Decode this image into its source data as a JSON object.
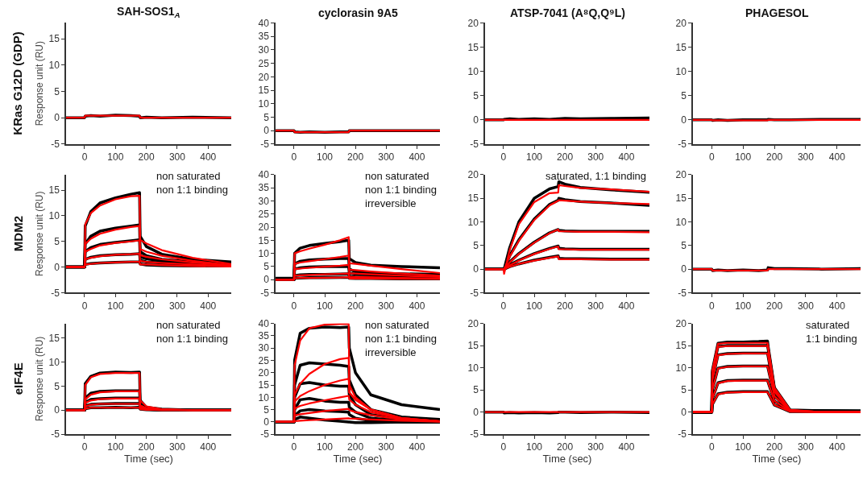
{
  "chart_data": [
    {
      "type": "line",
      "title": "SAH-SOS1$_{A}$",
      "ylabel": "Response unit (RU)",
      "annotations": [
        "KRas G12D (GDP)"
      ],
      "x": [
        -60,
        0,
        2,
        20,
        50,
        100,
        150,
        178,
        180,
        200,
        250,
        350,
        475
      ],
      "xlim": [
        -60,
        475
      ],
      "xticks": [
        0,
        100,
        200,
        300,
        400
      ],
      "ylim": [
        -5,
        18
      ],
      "yticks": [
        -5,
        0,
        5,
        10,
        15
      ],
      "series": [
        {
          "color": "#000000",
          "values": [
            0,
            0,
            0.3,
            0.4,
            0.3,
            0.5,
            0.4,
            0.3,
            0,
            0.1,
            0,
            0.1,
            0
          ]
        },
        {
          "color": "#ff0000",
          "values": [
            0,
            0,
            0.4,
            0.4,
            0.4,
            0.4,
            0.4,
            0.4,
            0,
            0,
            0,
            0,
            0
          ]
        }
      ]
    },
    {
      "type": "line",
      "title": "cyclorasin 9A5",
      "x": [
        -60,
        0,
        2,
        20,
        50,
        100,
        150,
        178,
        180,
        200,
        250,
        350,
        475
      ],
      "xlim": [
        -60,
        475
      ],
      "xticks": [
        0,
        100,
        200,
        300,
        400
      ],
      "ylim": [
        -5,
        40
      ],
      "yticks": [
        -5,
        0,
        5,
        10,
        15,
        20,
        25,
        30,
        35,
        40
      ],
      "series": [
        {
          "color": "#000000",
          "values": [
            0,
            0,
            -0.5,
            -0.6,
            -0.5,
            -0.6,
            -0.5,
            -0.5,
            0,
            0,
            0,
            0,
            0
          ]
        },
        {
          "color": "#ff0000",
          "values": [
            0,
            0,
            -0.6,
            -0.6,
            -0.6,
            -0.6,
            -0.6,
            -0.6,
            0,
            0,
            0,
            0,
            0
          ]
        }
      ]
    },
    {
      "type": "line",
      "title": "ATSP-7041 (A⁸Q,Q⁹L)",
      "x": [
        -60,
        0,
        2,
        20,
        50,
        100,
        150,
        178,
        180,
        200,
        250,
        350,
        475
      ],
      "xlim": [
        -60,
        475
      ],
      "xticks": [
        0,
        100,
        200,
        300,
        400
      ],
      "ylim": [
        -5,
        20
      ],
      "yticks": [
        -5,
        0,
        5,
        10,
        15,
        20
      ],
      "series": [
        {
          "color": "#000000",
          "values": [
            0,
            0,
            0.1,
            0.2,
            0.1,
            0.2,
            0.1,
            0.2,
            0.2,
            0.3,
            0.2,
            0.3,
            0.4
          ]
        },
        {
          "color": "#ff0000",
          "values": [
            0,
            0,
            0,
            0,
            0,
            0,
            0,
            0,
            0,
            0,
            0,
            0,
            0
          ]
        }
      ]
    },
    {
      "type": "line",
      "title": "PHAGESOL",
      "x": [
        -60,
        0,
        2,
        20,
        50,
        100,
        150,
        178,
        180,
        200,
        250,
        350,
        475
      ],
      "xlim": [
        -60,
        475
      ],
      "xticks": [
        0,
        100,
        200,
        300,
        400
      ],
      "ylim": [
        -5,
        20
      ],
      "yticks": [
        -5,
        0,
        5,
        10,
        15,
        20
      ],
      "series": [
        {
          "color": "#000000",
          "values": [
            0,
            0,
            -0.1,
            0,
            -0.1,
            0,
            0,
            0,
            0.1,
            0,
            0,
            0.1,
            0.1
          ]
        },
        {
          "color": "#ff0000",
          "values": [
            0,
            0,
            -0.1,
            -0.1,
            -0.1,
            -0.1,
            -0.1,
            -0.1,
            0,
            0,
            0,
            0,
            0
          ]
        }
      ]
    },
    {
      "type": "line",
      "ylabel": "Response unit (RU)",
      "annotations": [
        "MDM2",
        "non saturated\nnon 1:1 binding"
      ],
      "x": [
        -60,
        0,
        2,
        20,
        50,
        100,
        150,
        178,
        180,
        200,
        250,
        350,
        475
      ],
      "xlim": [
        -60,
        475
      ],
      "xticks": [
        0,
        100,
        200,
        300,
        400
      ],
      "ylim": [
        -5,
        18
      ],
      "yticks": [
        -5,
        0,
        5,
        10,
        15
      ],
      "series": [
        {
          "color": "#000000",
          "values": [
            0,
            0,
            8,
            10.8,
            12.5,
            13.5,
            14.2,
            14.5,
            6,
            4,
            2.5,
            1.5,
            1
          ]
        },
        {
          "color": "#000000",
          "values": [
            0,
            0,
            4.5,
            6,
            7,
            7.6,
            8,
            8.2,
            3,
            2.2,
            1.5,
            1,
            0.8
          ]
        },
        {
          "color": "#000000",
          "values": [
            0,
            0,
            3,
            3.8,
            4.4,
            4.8,
            5.1,
            5.3,
            2,
            1.6,
            1.2,
            0.9,
            0.7
          ]
        },
        {
          "color": "#000000",
          "values": [
            0,
            0,
            1.5,
            1.9,
            2.2,
            2.4,
            2.5,
            2.6,
            1.3,
            1,
            0.8,
            0.6,
            0.4
          ]
        },
        {
          "color": "#000000",
          "values": [
            0,
            0,
            0.5,
            0.7,
            0.8,
            0.9,
            1,
            1,
            0.6,
            0.4,
            0.3,
            0.2,
            0.2
          ]
        },
        {
          "color": "#ff0000",
          "values": [
            0,
            0,
            8.3,
            10.5,
            12,
            13.2,
            13.8,
            13.9,
            5.3,
            4.6,
            3.3,
            1.8,
            0.6
          ]
        },
        {
          "color": "#ff0000",
          "values": [
            0,
            0,
            4.5,
            5.5,
            6.5,
            7.3,
            7.8,
            8,
            3.5,
            3,
            2.2,
            1.2,
            0.4
          ]
        },
        {
          "color": "#ff0000",
          "values": [
            0,
            0,
            3,
            3.5,
            4.2,
            4.7,
            5,
            5.2,
            2.3,
            2,
            1.5,
            0.9,
            0.3
          ]
        },
        {
          "color": "#ff0000",
          "values": [
            0,
            0,
            1.5,
            1.8,
            2.1,
            2.4,
            2.5,
            2.6,
            1.2,
            1,
            0.8,
            0.5,
            0.2
          ]
        },
        {
          "color": "#ff0000",
          "values": [
            0,
            0,
            0.5,
            0.6,
            0.8,
            0.9,
            1,
            1,
            0.5,
            0.5,
            0.4,
            0.2,
            0.1
          ]
        }
      ]
    },
    {
      "type": "line",
      "annotations": [
        "non saturated\nnon 1:1 binding\nirreversible"
      ],
      "x": [
        -60,
        0,
        2,
        20,
        50,
        100,
        150,
        178,
        180,
        200,
        250,
        350,
        475
      ],
      "xlim": [
        -60,
        475
      ],
      "xticks": [
        0,
        100,
        200,
        300,
        400
      ],
      "ylim": [
        -5,
        40
      ],
      "yticks": [
        -5,
        0,
        5,
        10,
        15,
        20,
        25,
        30,
        35,
        40
      ],
      "series": [
        {
          "color": "#000000",
          "values": [
            0.5,
            0.5,
            10,
            12,
            13,
            13.8,
            14.5,
            15,
            8,
            6.5,
            5.5,
            5,
            4.5
          ]
        },
        {
          "color": "#000000",
          "values": [
            0,
            0,
            6,
            7,
            7.5,
            7.8,
            8,
            8,
            4,
            3,
            2.5,
            2.2,
            2
          ]
        },
        {
          "color": "#000000",
          "values": [
            0,
            0,
            4,
            4.5,
            4.8,
            5,
            5,
            5,
            2.5,
            2,
            1.8,
            1.5,
            1.3
          ]
        },
        {
          "color": "#000000",
          "values": [
            0,
            0,
            1.5,
            1.8,
            2,
            2,
            2.1,
            2.2,
            1.2,
            1,
            0.9,
            0.7,
            0.6
          ]
        },
        {
          "color": "#000000",
          "values": [
            0,
            0,
            0.5,
            0.6,
            0.7,
            0.7,
            0.8,
            0.8,
            0.5,
            0.4,
            0.4,
            0.3,
            0.3
          ]
        },
        {
          "color": "#ff0000",
          "values": [
            0,
            0,
            10,
            10.8,
            11.8,
            13.3,
            15,
            16.2,
            6.2,
            6,
            5.3,
            4,
            2.5
          ]
        },
        {
          "color": "#ff0000",
          "values": [
            0,
            0,
            6,
            6.5,
            7,
            7.8,
            8.6,
            9.2,
            3.8,
            3.6,
            3.1,
            2.3,
            1.5
          ]
        },
        {
          "color": "#ff0000",
          "values": [
            0,
            0,
            4,
            4.2,
            4.5,
            4.9,
            5.3,
            5.6,
            2.4,
            2.3,
            2,
            1.5,
            1
          ]
        },
        {
          "color": "#ff0000",
          "values": [
            0,
            0,
            1.5,
            1.6,
            1.8,
            2,
            2.2,
            2.3,
            1,
            1,
            0.9,
            0.6,
            0.4
          ]
        },
        {
          "color": "#ff0000",
          "values": [
            0,
            0,
            0.5,
            0.6,
            0.6,
            0.7,
            0.8,
            0.9,
            0.4,
            0.4,
            0.4,
            0.3,
            0.2
          ]
        }
      ]
    },
    {
      "type": "line",
      "annotations": [
        "saturated, 1:1 binding"
      ],
      "x": [
        -60,
        0,
        2,
        20,
        50,
        100,
        150,
        178,
        180,
        200,
        250,
        350,
        475
      ],
      "xlim": [
        -60,
        475
      ],
      "xticks": [
        0,
        100,
        200,
        300,
        400
      ],
      "ylim": [
        -5,
        20
      ],
      "yticks": [
        -5,
        0,
        5,
        10,
        15,
        20
      ],
      "series": [
        {
          "color": "#000000",
          "values": [
            0,
            0,
            0,
            4.5,
            10,
            15,
            17,
            17.5,
            18.5,
            18,
            17.3,
            16.8,
            16.3
          ]
        },
        {
          "color": "#000000",
          "values": [
            0,
            0,
            0,
            2.8,
            6.2,
            10.6,
            13.7,
            14.6,
            15,
            14.7,
            14.3,
            14,
            13.5
          ]
        },
        {
          "color": "#000000",
          "values": [
            0,
            0,
            0,
            1.5,
            3.3,
            5.7,
            7.7,
            8.4,
            8.2,
            8.1,
            8,
            8,
            8
          ]
        },
        {
          "color": "#000000",
          "values": [
            0,
            0,
            0,
            0.9,
            1.9,
            3.3,
            4.4,
            4.9,
            4.4,
            4.3,
            4.2,
            4.2,
            4.2
          ]
        },
        {
          "color": "#000000",
          "values": [
            0,
            0,
            0,
            0.5,
            1.1,
            1.9,
            2.5,
            2.8,
            2.3,
            2.2,
            2.2,
            2.1,
            2.1
          ]
        },
        {
          "color": "#ff0000",
          "values": [
            0,
            0,
            -1,
            4,
            9.5,
            14.2,
            16.1,
            16.2,
            17.8,
            17.6,
            17.2,
            16.9,
            16.4
          ]
        },
        {
          "color": "#ff0000",
          "values": [
            0,
            0,
            0,
            2.6,
            6,
            10.4,
            13.5,
            14.5,
            14.6,
            14.5,
            14.3,
            14,
            13.8
          ]
        },
        {
          "color": "#ff0000",
          "values": [
            0,
            0,
            0,
            1.4,
            3.2,
            5.6,
            7.6,
            8.4,
            8,
            8,
            7.9,
            7.9,
            7.8
          ]
        },
        {
          "color": "#ff0000",
          "values": [
            0,
            0,
            0,
            0.8,
            1.8,
            3.2,
            4.3,
            4.8,
            4.2,
            4.2,
            4.1,
            4.1,
            4.1
          ]
        },
        {
          "color": "#ff0000",
          "values": [
            0,
            0,
            0,
            0.5,
            1.1,
            1.8,
            2.4,
            2.7,
            2.1,
            2.1,
            2.1,
            2,
            2
          ]
        }
      ]
    },
    {
      "type": "line",
      "x": [
        -60,
        0,
        2,
        20,
        50,
        100,
        150,
        178,
        180,
        200,
        250,
        350,
        475
      ],
      "xlim": [
        -60,
        475
      ],
      "xticks": [
        0,
        100,
        200,
        300,
        400
      ],
      "ylim": [
        -5,
        20
      ],
      "yticks": [
        -5,
        0,
        5,
        10,
        15,
        20
      ],
      "series": [
        {
          "color": "#000000",
          "values": [
            0,
            0,
            -0.3,
            -0.2,
            -0.3,
            -0.2,
            -0.3,
            -0.2,
            0.3,
            0.1,
            0.1,
            0,
            0.1
          ]
        },
        {
          "color": "#ff0000",
          "values": [
            0,
            0,
            -0.3,
            -0.3,
            -0.3,
            -0.3,
            -0.3,
            -0.3,
            0,
            0,
            0,
            0,
            0
          ]
        }
      ]
    },
    {
      "type": "line",
      "xlabel": "Time (sec)",
      "ylabel": "Response unit (RU)",
      "annotations": [
        "eIF4E",
        "non saturated\nnon 1:1 binding"
      ],
      "x": [
        -60,
        0,
        2,
        20,
        50,
        100,
        150,
        178,
        180,
        200,
        250,
        350,
        475
      ],
      "xlim": [
        -60,
        475
      ],
      "xticks": [
        0,
        100,
        200,
        300,
        400
      ],
      "ylim": [
        -5,
        18
      ],
      "yticks": [
        -5,
        0,
        5,
        10,
        15
      ],
      "series": [
        {
          "color": "#000000",
          "values": [
            0,
            0,
            5.5,
            7,
            7.7,
            7.9,
            7.8,
            7.9,
            2,
            0.6,
            0.2,
            0,
            0
          ]
        },
        {
          "color": "#000000",
          "values": [
            0,
            0,
            2.5,
            3.5,
            3.9,
            4,
            4,
            4,
            1.1,
            0.4,
            0.1,
            0,
            0
          ]
        },
        {
          "color": "#000000",
          "values": [
            0,
            0,
            1.6,
            2.2,
            2.4,
            2.5,
            2.5,
            2.5,
            0.7,
            0.3,
            0.1,
            0,
            0
          ]
        },
        {
          "color": "#000000",
          "values": [
            0,
            0,
            0.9,
            1.2,
            1.3,
            1.4,
            1.4,
            1.4,
            0.4,
            0.2,
            0,
            0,
            0
          ]
        },
        {
          "color": "#000000",
          "values": [
            0,
            0,
            0.3,
            0.5,
            0.5,
            0.6,
            0.5,
            0.6,
            0.2,
            0.1,
            0,
            0,
            0
          ]
        },
        {
          "color": "#ff0000",
          "values": [
            0,
            0,
            5.2,
            6.8,
            7.5,
            7.7,
            7.7,
            7.7,
            2,
            0.8,
            0.2,
            0,
            0
          ]
        },
        {
          "color": "#ff0000",
          "values": [
            0,
            0,
            2.2,
            3.2,
            3.7,
            3.9,
            3.9,
            3.9,
            1,
            0.4,
            0.1,
            0,
            0
          ]
        },
        {
          "color": "#ff0000",
          "values": [
            0,
            0,
            1.5,
            2,
            2.3,
            2.4,
            2.4,
            2.4,
            0.6,
            0.3,
            0.1,
            0,
            0
          ]
        },
        {
          "color": "#ff0000",
          "values": [
            0,
            0,
            0.8,
            1.1,
            1.3,
            1.3,
            1.3,
            1.3,
            0.4,
            0.1,
            0,
            0,
            0
          ]
        },
        {
          "color": "#ff0000",
          "values": [
            0,
            0,
            0.3,
            0.5,
            0.5,
            0.5,
            0.5,
            0.5,
            0.2,
            0.1,
            0,
            0,
            0
          ]
        }
      ]
    },
    {
      "type": "line",
      "xlabel": "Time (sec)",
      "annotations": [
        "non saturated\nnon 1:1 binding\nirreversible"
      ],
      "x": [
        -60,
        0,
        2,
        20,
        50,
        100,
        150,
        178,
        180,
        200,
        250,
        350,
        475
      ],
      "xlim": [
        -60,
        475
      ],
      "xticks": [
        0,
        100,
        200,
        300,
        400
      ],
      "ylim": [
        -5,
        40
      ],
      "yticks": [
        -5,
        0,
        5,
        10,
        15,
        20,
        25,
        30,
        35,
        40
      ],
      "series": [
        {
          "color": "#000000",
          "values": [
            0,
            0,
            25,
            36,
            38,
            38.5,
            38.3,
            38.5,
            30,
            20,
            11,
            7,
            5
          ]
        },
        {
          "color": "#000000",
          "values": [
            0,
            0,
            15,
            23,
            24,
            23.5,
            23,
            22.5,
            17,
            11,
            5,
            2,
            1
          ]
        },
        {
          "color": "#000000",
          "values": [
            0,
            0,
            10,
            15.5,
            16,
            15,
            14.5,
            14.5,
            11,
            7,
            3,
            1,
            0.5
          ]
        },
        {
          "color": "#000000",
          "values": [
            0,
            0,
            5,
            9,
            9.5,
            8.5,
            8,
            8,
            6,
            4,
            1.5,
            0.5,
            0.3
          ]
        },
        {
          "color": "#000000",
          "values": [
            0,
            0,
            2.5,
            4.5,
            5,
            4.5,
            4.2,
            4,
            3,
            1.5,
            0.5,
            0,
            0
          ]
        },
        {
          "color": "#000000",
          "values": [
            0,
            0,
            1,
            2,
            1.5,
            0.8,
            0.3,
            0,
            0,
            -0.3,
            -0.3,
            0,
            0
          ]
        },
        {
          "color": "#ff0000",
          "values": [
            0,
            0,
            23,
            33,
            38,
            39.5,
            39.7,
            39.7,
            15,
            10,
            5,
            1.5,
            0.3
          ]
        },
        {
          "color": "#ff0000",
          "values": [
            0,
            0,
            11,
            15.5,
            19.5,
            23.5,
            25.5,
            26,
            12,
            9,
            5,
            1.6,
            0.3
          ]
        },
        {
          "color": "#ff0000",
          "values": [
            0,
            0,
            8.2,
            10.5,
            12.5,
            15,
            16.8,
            17.5,
            12,
            9,
            5,
            1.5,
            0.3
          ]
        },
        {
          "color": "#ff0000",
          "values": [
            0,
            0,
            5.4,
            6.5,
            7.5,
            8.8,
            10,
            10.6,
            9,
            7,
            4,
            1.3,
            0.3
          ]
        },
        {
          "color": "#ff0000",
          "values": [
            0,
            0,
            2.6,
            3.1,
            3.6,
            4.4,
            5,
            5.3,
            4.8,
            4,
            2.8,
            1,
            0.2
          ]
        },
        {
          "color": "#ff0000",
          "values": [
            0,
            0,
            0.3,
            0.5,
            0.7,
            1,
            1.3,
            1.5,
            1.4,
            1.3,
            1,
            0.5,
            0.1
          ]
        }
      ]
    },
    {
      "type": "line",
      "xlabel": "Time (sec)",
      "x": [
        -60,
        0,
        2,
        20,
        50,
        100,
        150,
        178,
        180,
        200,
        250,
        350,
        475
      ],
      "xlim": [
        -60,
        475
      ],
      "xticks": [
        0,
        100,
        200,
        300,
        400
      ],
      "ylim": [
        -5,
        20
      ],
      "yticks": [
        -5,
        0,
        5,
        10,
        15,
        20
      ],
      "series": [
        {
          "color": "#000000",
          "values": [
            0,
            0,
            -0.2,
            -0.1,
            -0.2,
            -0.1,
            -0.2,
            -0.1,
            0,
            0,
            -0.1,
            0,
            -0.1
          ]
        },
        {
          "color": "#ff0000",
          "values": [
            0,
            0,
            0,
            0,
            0,
            0,
            0,
            0,
            0,
            0,
            0,
            0,
            0
          ]
        }
      ]
    },
    {
      "type": "line",
      "xlabel": "Time (sec)",
      "annotations": [
        "saturated\n1:1 binding"
      ],
      "x": [
        -60,
        0,
        2,
        20,
        50,
        100,
        150,
        178,
        180,
        200,
        250,
        350,
        475
      ],
      "xlim": [
        -60,
        475
      ],
      "xticks": [
        0,
        100,
        200,
        300,
        400
      ],
      "ylim": [
        -5,
        20
      ],
      "yticks": [
        -5,
        0,
        5,
        10,
        15,
        20
      ],
      "series": [
        {
          "color": "#000000",
          "values": [
            0,
            0,
            9.4,
            15.5,
            15.8,
            15.8,
            15.9,
            16,
            14.8,
            5.5,
            0.5,
            0.3,
            0.2
          ]
        },
        {
          "color": "#000000",
          "values": [
            0,
            0,
            8.9,
            14.8,
            15,
            15,
            15,
            15,
            14.2,
            5.2,
            0.4,
            0.3,
            0.2
          ]
        },
        {
          "color": "#000000",
          "values": [
            0,
            0,
            7.2,
            12.9,
            13.2,
            13.3,
            13.3,
            13.3,
            12.5,
            4.6,
            0.4,
            0.2,
            0.2
          ]
        },
        {
          "color": "#000000",
          "values": [
            0,
            0,
            5,
            9.9,
            10.3,
            10.4,
            10.4,
            10.4,
            9.8,
            3.6,
            0.3,
            0.2,
            0.2
          ]
        },
        {
          "color": "#000000",
          "values": [
            0,
            0,
            3,
            6.6,
            7.1,
            7.2,
            7.2,
            7.2,
            6.7,
            2.5,
            0.2,
            0.2,
            0.2
          ]
        },
        {
          "color": "#000000",
          "values": [
            0,
            0,
            1.7,
            4.1,
            4.5,
            4.6,
            4.6,
            4.6,
            4.3,
            1.6,
            0.1,
            0.1,
            0.1
          ]
        },
        {
          "color": "#ff0000",
          "values": [
            0,
            0,
            9.4,
            15.4,
            15.6,
            15.6,
            15.6,
            15.6,
            14.8,
            5.5,
            0.5,
            0,
            0
          ]
        },
        {
          "color": "#ff0000",
          "values": [
            0,
            0,
            8.9,
            14.7,
            14.9,
            14.9,
            14.9,
            14.9,
            14.2,
            5.2,
            0.4,
            0,
            0
          ]
        },
        {
          "color": "#ff0000",
          "values": [
            0,
            0,
            7.2,
            12.8,
            13.1,
            13.2,
            13.2,
            13.2,
            12.5,
            4.6,
            0.4,
            0,
            0
          ]
        },
        {
          "color": "#ff0000",
          "values": [
            0,
            0,
            5,
            9.8,
            10.2,
            10.3,
            10.3,
            10.3,
            9.8,
            3.6,
            0.3,
            0,
            0
          ]
        },
        {
          "color": "#ff0000",
          "values": [
            0,
            0,
            3,
            6.5,
            7,
            7.1,
            7.1,
            7.1,
            6.7,
            2.5,
            0.2,
            0,
            0
          ]
        },
        {
          "color": "#ff0000",
          "values": [
            0,
            0,
            1.7,
            4,
            4.4,
            4.5,
            4.5,
            4.5,
            4.3,
            1.6,
            0.1,
            0,
            0
          ]
        }
      ]
    }
  ]
}
